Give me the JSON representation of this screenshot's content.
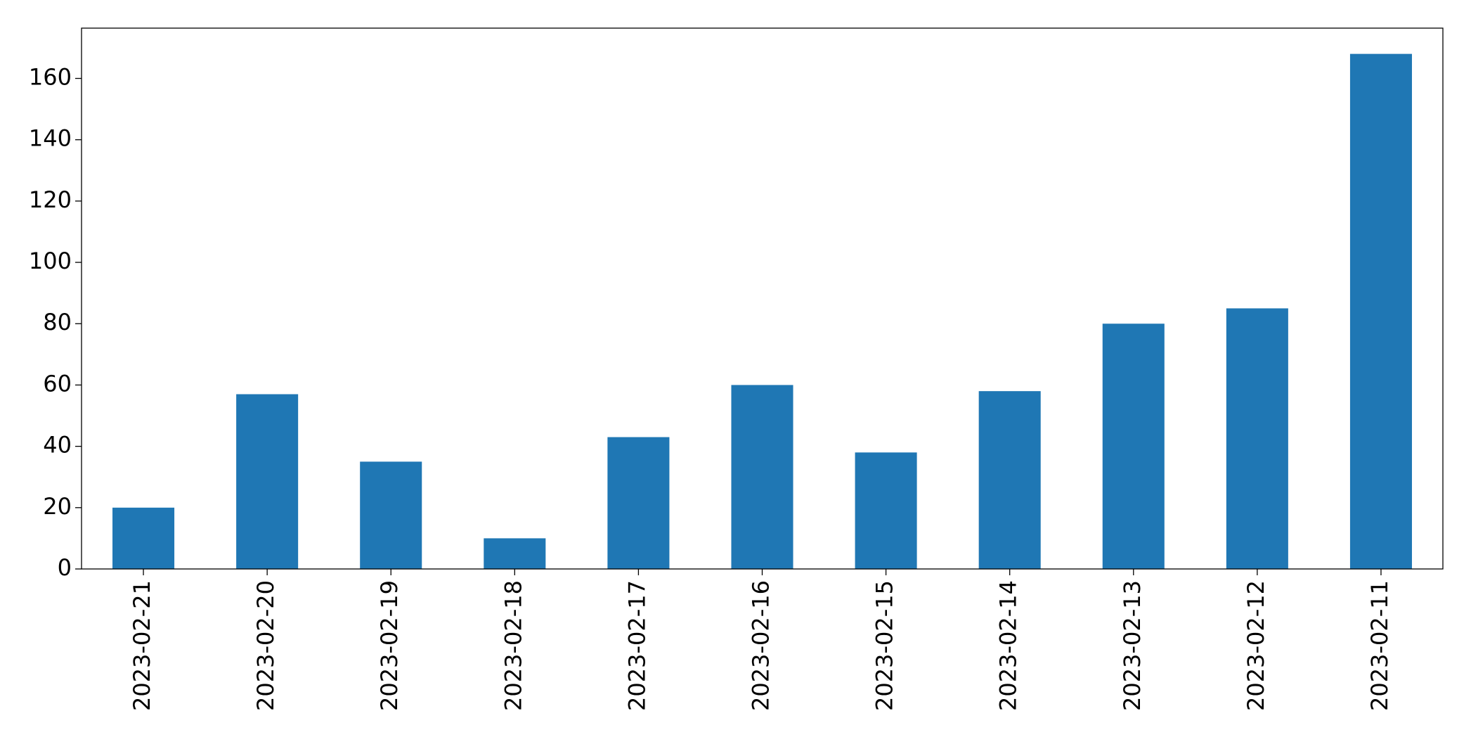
{
  "chart_data": {
    "type": "bar",
    "categories": [
      "2023-02-21",
      "2023-02-20",
      "2023-02-19",
      "2023-02-18",
      "2023-02-17",
      "2023-02-16",
      "2023-02-15",
      "2023-02-14",
      "2023-02-13",
      "2023-02-12",
      "2023-02-11"
    ],
    "values": [
      20,
      57,
      35,
      10,
      43,
      60,
      38,
      58,
      80,
      85,
      168
    ],
    "color": "#1f77b4",
    "ylim": [
      0,
      176.4
    ],
    "yticks": [
      0,
      20,
      40,
      60,
      80,
      100,
      120,
      140,
      160
    ],
    "grid": false
  }
}
